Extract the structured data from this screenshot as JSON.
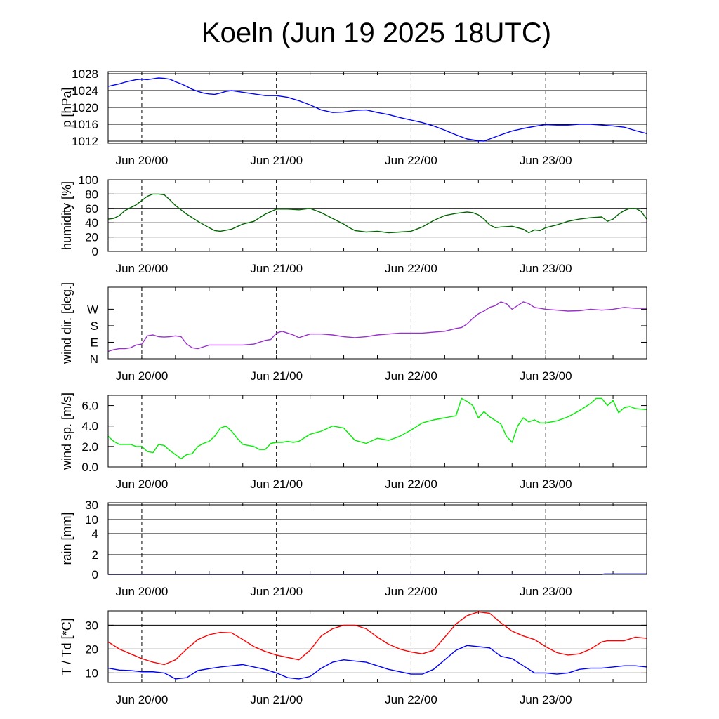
{
  "title": "Koeln (Jun 19 2025 18UTC)",
  "x_axis": {
    "unit": "hours since Jun 19 18UTC",
    "range": [
      0,
      96
    ],
    "tick_labels": [
      {
        "label": "Jun 20/00",
        "hour": 6
      },
      {
        "label": "Jun 21/00",
        "hour": 30
      },
      {
        "label": "Jun 22/00",
        "hour": 54
      },
      {
        "label": "Jun 23/00",
        "hour": 78
      }
    ]
  },
  "chart_data": [
    {
      "type": "line",
      "id": "pressure",
      "ylabel": "p [hPa]",
      "ylim": [
        1011.5,
        1028.5
      ],
      "yticks": [
        "1012",
        "1016",
        "1020",
        "1024",
        "1028"
      ],
      "ytick_values": [
        1012,
        1016,
        1020,
        1024,
        1028
      ],
      "grid": true,
      "series": [
        {
          "color": "#0000ff",
          "x": [
            0,
            1,
            2,
            3,
            4,
            5,
            6,
            7,
            8,
            9,
            10,
            11,
            12,
            13,
            14,
            15,
            16,
            17,
            18,
            19,
            20,
            21,
            22,
            24,
            26,
            28,
            30,
            32,
            34,
            36,
            38,
            40,
            42,
            44,
            46,
            48,
            50,
            52,
            54,
            56,
            58,
            60,
            62,
            64,
            66,
            67,
            68,
            70,
            72,
            74,
            76,
            78,
            80,
            82,
            84,
            86,
            88,
            90,
            92,
            94,
            96
          ],
          "y": [
            1025.0,
            1025.3,
            1025.6,
            1026.0,
            1026.3,
            1026.6,
            1026.7,
            1026.6,
            1026.8,
            1027.0,
            1026.9,
            1026.7,
            1026.1,
            1025.6,
            1025.0,
            1024.3,
            1023.8,
            1023.4,
            1023.2,
            1023.1,
            1023.4,
            1023.8,
            1024.0,
            1023.6,
            1023.2,
            1022.8,
            1022.8,
            1022.4,
            1021.6,
            1020.6,
            1019.4,
            1018.8,
            1018.9,
            1019.3,
            1019.4,
            1018.8,
            1018.3,
            1017.6,
            1017.0,
            1016.4,
            1015.6,
            1014.6,
            1013.5,
            1012.5,
            1012.1,
            1012.0,
            1012.5,
            1013.5,
            1014.4,
            1015.0,
            1015.5,
            1015.9,
            1015.8,
            1015.8,
            1016.0,
            1016.0,
            1015.8,
            1015.6,
            1015.3,
            1014.5,
            1013.8
          ]
        }
      ]
    },
    {
      "type": "line",
      "id": "humidity",
      "ylabel": "humidity [%]",
      "ylim": [
        0,
        100
      ],
      "yticks": [
        "0",
        "20",
        "40",
        "60",
        "80",
        "100"
      ],
      "ytick_values": [
        0,
        20,
        40,
        60,
        80,
        100
      ],
      "grid": true,
      "series": [
        {
          "color": "#006400",
          "x": [
            0,
            1,
            2,
            3,
            4,
            5,
            6,
            7,
            8,
            9,
            10,
            11,
            12,
            14,
            16,
            18,
            19,
            20,
            22,
            24,
            26,
            28,
            30,
            32,
            34,
            36,
            38,
            40,
            42,
            43,
            44,
            46,
            48,
            50,
            52,
            54,
            56,
            58,
            60,
            62,
            64,
            65,
            66,
            67,
            68,
            69,
            70,
            72,
            74,
            75,
            76,
            77,
            78,
            80,
            82,
            84,
            86,
            88,
            89,
            90,
            91,
            92,
            93,
            94,
            95,
            96
          ],
          "y": [
            45,
            46,
            50,
            57,
            61,
            65,
            71,
            77,
            80,
            80,
            79,
            72,
            64,
            52,
            42,
            33,
            29,
            28,
            31,
            38,
            42,
            52,
            59,
            59,
            58,
            60,
            54,
            46,
            38,
            33,
            29,
            27,
            28,
            26,
            27,
            28,
            34,
            43,
            50,
            53,
            55,
            54,
            51,
            45,
            37,
            33,
            34,
            35,
            31,
            26,
            30,
            29,
            33,
            37,
            42,
            45,
            47,
            48,
            42,
            45,
            52,
            57,
            60,
            60,
            56,
            45
          ]
        }
      ]
    },
    {
      "type": "line",
      "id": "wind_direction",
      "ylabel": "wind dir. [deg.]",
      "ylim": [
        0,
        390
      ],
      "yticks": [
        "N",
        "E",
        "S",
        "W"
      ],
      "ytick_values": [
        0,
        90,
        180,
        270
      ],
      "grid": false,
      "series": [
        {
          "color": "#9932cc",
          "x": [
            0,
            1,
            2,
            3,
            4,
            5,
            6,
            7,
            8,
            9,
            10,
            11,
            12,
            13,
            14,
            15,
            16,
            17,
            18,
            19,
            20,
            22,
            24,
            26,
            28,
            29,
            30,
            31,
            32,
            33,
            34,
            35,
            36,
            38,
            40,
            42,
            44,
            46,
            48,
            50,
            52,
            54,
            56,
            58,
            60,
            62,
            63,
            64,
            65,
            66,
            67,
            68,
            69,
            70,
            71,
            72,
            73,
            74,
            75,
            76,
            77,
            78,
            80,
            82,
            84,
            86,
            88,
            90,
            92,
            94,
            96
          ],
          "y": [
            40,
            50,
            55,
            55,
            60,
            75,
            80,
            125,
            130,
            120,
            118,
            120,
            125,
            120,
            80,
            60,
            55,
            65,
            75,
            75,
            75,
            75,
            75,
            80,
            100,
            105,
            140,
            150,
            140,
            130,
            115,
            125,
            135,
            135,
            130,
            120,
            115,
            120,
            130,
            135,
            140,
            140,
            140,
            145,
            150,
            165,
            170,
            190,
            220,
            245,
            260,
            280,
            290,
            310,
            300,
            270,
            290,
            310,
            300,
            280,
            275,
            270,
            265,
            260,
            262,
            270,
            265,
            270,
            280,
            275,
            275
          ]
        }
      ]
    },
    {
      "type": "line",
      "id": "wind_speed",
      "ylabel": "wind sp. [m/s]",
      "ylim": [
        0,
        7
      ],
      "yticks": [
        "0.0",
        "2.0",
        "4.0",
        "6.0"
      ],
      "ytick_values": [
        0,
        2,
        4,
        6
      ],
      "grid": false,
      "series": [
        {
          "color": "#00ee00",
          "x": [
            0,
            1,
            2,
            3,
            4,
            5,
            6,
            7,
            8,
            9,
            10,
            11,
            12,
            13,
            14,
            15,
            16,
            17,
            18,
            19,
            20,
            21,
            22,
            23,
            24,
            26,
            27,
            28,
            29,
            30,
            31,
            32,
            33,
            34,
            36,
            38,
            40,
            42,
            44,
            46,
            48,
            50,
            52,
            54,
            56,
            58,
            60,
            62,
            63,
            64,
            65,
            66,
            67,
            68,
            70,
            71,
            72,
            73,
            74,
            75,
            76,
            77,
            78,
            80,
            82,
            84,
            86,
            87,
            88,
            89,
            90,
            91,
            92,
            93,
            94,
            96
          ],
          "y": [
            3.0,
            2.5,
            2.2,
            2.2,
            2.2,
            2.0,
            2.0,
            1.5,
            1.4,
            2.2,
            2.1,
            1.6,
            1.2,
            0.8,
            1.2,
            1.3,
            2.0,
            2.3,
            2.5,
            3.0,
            3.8,
            4.0,
            3.5,
            2.8,
            2.2,
            2.0,
            1.7,
            1.7,
            2.3,
            2.4,
            2.4,
            2.5,
            2.4,
            2.5,
            3.2,
            3.5,
            4.0,
            3.8,
            2.6,
            2.3,
            2.8,
            2.6,
            3.0,
            3.6,
            4.3,
            4.6,
            4.8,
            5.0,
            6.7,
            6.4,
            6.0,
            4.8,
            5.4,
            4.9,
            4.2,
            3.0,
            2.4,
            4.0,
            4.8,
            4.4,
            4.6,
            4.3,
            4.3,
            4.5,
            4.9,
            5.5,
            6.2,
            6.7,
            6.7,
            6.0,
            6.5,
            5.3,
            5.8,
            5.9,
            5.7,
            5.6
          ]
        }
      ]
    },
    {
      "type": "line",
      "id": "rain",
      "ylabel": "rain [mm]",
      "ylim": [
        0,
        33
      ],
      "yticks": [
        "0",
        "2",
        "4",
        "10",
        "30"
      ],
      "ytick_values": [
        0,
        2,
        4,
        10,
        30
      ],
      "yscale": "nonlinear",
      "grid": true,
      "series": [
        {
          "color": "#0000aa",
          "x": [
            0,
            88,
            88.5,
            96
          ],
          "y": [
            0,
            0,
            0.05,
            0.05
          ]
        }
      ]
    },
    {
      "type": "line",
      "id": "temperature",
      "ylabel": "T / Td [*C]",
      "ylim": [
        6,
        36
      ],
      "yticks": [
        "10",
        "20",
        "30"
      ],
      "ytick_values": [
        10,
        20,
        30
      ],
      "grid": true,
      "series": [
        {
          "color": "#ff0000",
          "x": [
            0,
            2,
            4,
            6,
            8,
            10,
            12,
            14,
            16,
            18,
            20,
            22,
            24,
            26,
            28,
            30,
            32,
            34,
            36,
            38,
            40,
            42,
            44,
            46,
            48,
            50,
            52,
            54,
            56,
            58,
            60,
            62,
            64,
            66,
            68,
            70,
            72,
            74,
            76,
            78,
            80,
            82,
            84,
            86,
            88,
            89,
            90,
            92,
            94,
            96
          ],
          "y": [
            23,
            20,
            18,
            16,
            14.5,
            13.5,
            15.5,
            20,
            24,
            26,
            27,
            26.8,
            24,
            21,
            19,
            17.5,
            16.5,
            15.5,
            19.5,
            25.5,
            28.5,
            30,
            30,
            28.5,
            25,
            22,
            20,
            18.8,
            18,
            19.5,
            25,
            30.5,
            34,
            35.6,
            35,
            31,
            27.5,
            25.5,
            24,
            21,
            18.5,
            17.5,
            18,
            20,
            23,
            23.5,
            23.5,
            23.5,
            25,
            24.5
          ]
        },
        {
          "color": "#0000ff",
          "x": [
            0,
            2,
            4,
            6,
            8,
            10,
            12,
            14,
            16,
            18,
            20,
            22,
            24,
            26,
            28,
            30,
            32,
            34,
            36,
            38,
            40,
            42,
            44,
            46,
            48,
            50,
            52,
            54,
            56,
            58,
            60,
            62,
            64,
            66,
            68,
            70,
            72,
            74,
            76,
            78,
            80,
            82,
            84,
            86,
            88,
            90,
            92,
            94,
            96
          ],
          "y": [
            12,
            11.2,
            11,
            10.5,
            10.5,
            10,
            7.5,
            8,
            11,
            11.8,
            12.5,
            13,
            13.5,
            12.5,
            11.5,
            10,
            8,
            7.5,
            8.5,
            12,
            14.5,
            15.5,
            15,
            14.5,
            13,
            11.5,
            10.5,
            9.5,
            9.5,
            11.5,
            15.5,
            19.5,
            21.5,
            21,
            20.5,
            17,
            16,
            13,
            10,
            10,
            9.5,
            10,
            11.5,
            12,
            12,
            12.5,
            13,
            13,
            12.5
          ]
        }
      ]
    }
  ]
}
